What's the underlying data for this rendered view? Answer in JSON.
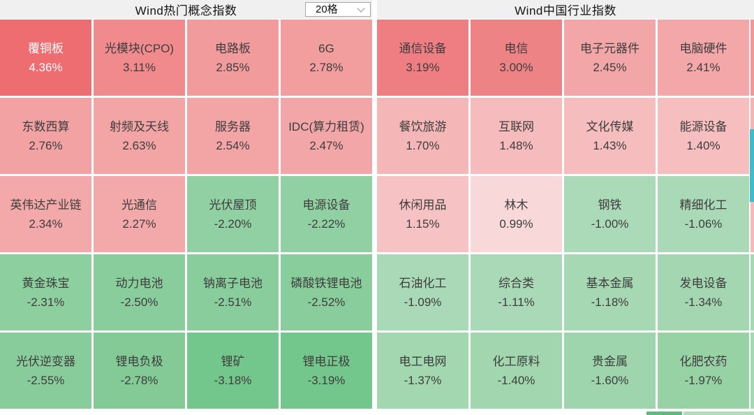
{
  "header": {
    "left_title": "Wind热门概念指数",
    "right_title": "Wind中国行业指数",
    "grid_size_selector": {
      "value": "20格"
    }
  },
  "accent_colors": {
    "scrollbar_thumb": "#3fbcca",
    "strong_positive": "#ed6d71",
    "strong_negative": "#73c68c",
    "header_background": "#f0f0f0"
  },
  "panels": {
    "concepts": {
      "cells": [
        {
          "label": "覆铜板",
          "change": "4.36%",
          "bg": "#ed6d71",
          "fg": "#ffffff"
        },
        {
          "label": "光模块(CPO)",
          "change": "3.11%",
          "bg": "#f08a8c"
        },
        {
          "label": "电路板",
          "change": "2.85%",
          "bg": "#f29b9c"
        },
        {
          "label": "6G",
          "change": "2.78%",
          "bg": "#f29e9f"
        },
        {
          "label": "东数西算",
          "change": "2.76%",
          "bg": "#f3a2a3"
        },
        {
          "label": "射频及天线",
          "change": "2.63%",
          "bg": "#f3a4a5"
        },
        {
          "label": "服务器",
          "change": "2.54%",
          "bg": "#f3a5a6"
        },
        {
          "label": "IDC(算力租赁)",
          "change": "2.47%",
          "bg": "#f3a6a7"
        },
        {
          "label": "英伟达产业链",
          "change": "2.34%",
          "bg": "#f3a8a9"
        },
        {
          "label": "光通信",
          "change": "2.27%",
          "bg": "#f3a9aa"
        },
        {
          "label": "光伏屋顶",
          "change": "-2.20%",
          "bg": "#90d0a2"
        },
        {
          "label": "电源设备",
          "change": "-2.22%",
          "bg": "#90d0a2"
        },
        {
          "label": "黄金珠宝",
          "change": "-2.31%",
          "bg": "#8dcf9f"
        },
        {
          "label": "动力电池",
          "change": "-2.50%",
          "bg": "#89cd9c"
        },
        {
          "label": "钠离子电池",
          "change": "-2.51%",
          "bg": "#89cd9c"
        },
        {
          "label": "磷酸铁锂电池",
          "change": "-2.52%",
          "bg": "#89cd9c"
        },
        {
          "label": "光伏逆变器",
          "change": "-2.55%",
          "bg": "#88cc9b"
        },
        {
          "label": "锂电负极",
          "change": "-2.78%",
          "bg": "#83ca97"
        },
        {
          "label": "锂矿",
          "change": "-3.18%",
          "bg": "#73c68c"
        },
        {
          "label": "锂电正极",
          "change": "-3.19%",
          "bg": "#73c68c"
        }
      ]
    },
    "industries": {
      "cells": [
        {
          "label": "通信设备",
          "change": "3.19%",
          "bg": "#ee7e81"
        },
        {
          "label": "电信",
          "change": "3.00%",
          "bg": "#ee8386"
        },
        {
          "label": "电子元器件",
          "change": "2.45%",
          "bg": "#f3a6a7"
        },
        {
          "label": "电脑硬件",
          "change": "2.41%",
          "bg": "#f3a7a8"
        },
        {
          "label": "餐饮旅游",
          "change": "1.70%",
          "bg": "#f5b6b7"
        },
        {
          "label": "互联网",
          "change": "1.48%",
          "bg": "#f6bcbd"
        },
        {
          "label": "文化传媒",
          "change": "1.43%",
          "bg": "#f6bdbe"
        },
        {
          "label": "能源设备",
          "change": "1.40%",
          "bg": "#f6bebf"
        },
        {
          "label": "休闲用品",
          "change": "1.15%",
          "bg": "#f6c2c3"
        },
        {
          "label": "林木",
          "change": "0.99%",
          "bg": "#f8d8d9"
        },
        {
          "label": "钢铁",
          "change": "-1.00%",
          "bg": "#abdab8"
        },
        {
          "label": "精细化工",
          "change": "-1.06%",
          "bg": "#aad9b7"
        },
        {
          "label": "石油化工",
          "change": "-1.09%",
          "bg": "#a9d9b6"
        },
        {
          "label": "综合类",
          "change": "-1.11%",
          "bg": "#a9d9b6"
        },
        {
          "label": "基本金属",
          "change": "-1.18%",
          "bg": "#a7d8b4"
        },
        {
          "label": "发电设备",
          "change": "-1.34%",
          "bg": "#a4d7b1"
        },
        {
          "label": "电工电网",
          "change": "-1.37%",
          "bg": "#a3d7b0"
        },
        {
          "label": "化工原料",
          "change": "-1.40%",
          "bg": "#a2d6af"
        },
        {
          "label": "贵金属",
          "change": "-1.60%",
          "bg": "#9ed5ac"
        },
        {
          "label": "化肥农药",
          "change": "-1.97%",
          "bg": "#97d2a5"
        }
      ]
    }
  }
}
